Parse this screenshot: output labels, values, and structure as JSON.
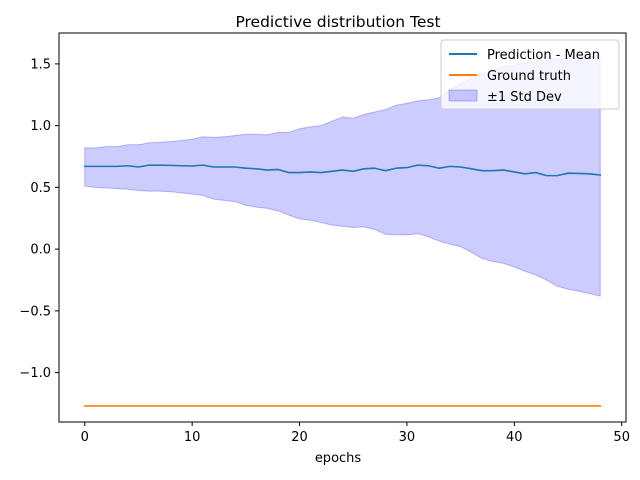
{
  "chart_data": {
    "type": "line",
    "title": "Predictive distribution Test",
    "xlabel": "epochs",
    "ylabel": "",
    "xlim": [
      -2.4,
      50.4
    ],
    "ylim": [
      -1.4,
      1.75
    ],
    "xticks": [
      0,
      10,
      20,
      30,
      40,
      50
    ],
    "yticks": [
      -1.0,
      -0.5,
      0.0,
      0.5,
      1.0,
      1.5
    ],
    "xtick_labels": [
      "0",
      "10",
      "20",
      "30",
      "40",
      "50"
    ],
    "ytick_labels": [
      "−1.0",
      "−0.5",
      "0.0",
      "0.5",
      "1.0",
      "1.5"
    ],
    "grid": false,
    "legend_position": "top-right",
    "x": [
      0,
      1,
      2,
      3,
      4,
      5,
      6,
      7,
      8,
      9,
      10,
      11,
      12,
      13,
      14,
      15,
      16,
      17,
      18,
      19,
      20,
      21,
      22,
      23,
      24,
      25,
      26,
      27,
      28,
      29,
      30,
      31,
      32,
      33,
      34,
      35,
      36,
      37,
      38,
      39,
      40,
      41,
      42,
      43,
      44,
      45,
      46,
      47,
      48
    ],
    "series": [
      {
        "name": "Prediction - Mean",
        "color": "#1f77b4",
        "values": [
          0.67,
          0.67,
          0.67,
          0.67,
          0.675,
          0.665,
          0.68,
          0.68,
          0.678,
          0.675,
          0.673,
          0.68,
          0.665,
          0.665,
          0.665,
          0.655,
          0.65,
          0.64,
          0.645,
          0.62,
          0.62,
          0.625,
          0.62,
          0.63,
          0.64,
          0.63,
          0.65,
          0.655,
          0.635,
          0.655,
          0.66,
          0.68,
          0.675,
          0.655,
          0.67,
          0.665,
          0.65,
          0.635,
          0.635,
          0.64,
          0.625,
          0.61,
          0.62,
          0.595,
          0.595,
          0.615,
          0.613,
          0.61,
          0.6
        ]
      },
      {
        "name": "Ground truth",
        "color": "#ff7f0e",
        "values": [
          -1.27,
          -1.27,
          -1.27,
          -1.27,
          -1.27,
          -1.27,
          -1.27,
          -1.27,
          -1.27,
          -1.27,
          -1.27,
          -1.27,
          -1.27,
          -1.27,
          -1.27,
          -1.27,
          -1.27,
          -1.27,
          -1.27,
          -1.27,
          -1.27,
          -1.27,
          -1.27,
          -1.27,
          -1.27,
          -1.27,
          -1.27,
          -1.27,
          -1.27,
          -1.27,
          -1.27,
          -1.27,
          -1.27,
          -1.27,
          -1.27,
          -1.27,
          -1.27,
          -1.27,
          -1.27,
          -1.27,
          -1.27,
          -1.27,
          -1.27,
          -1.27,
          -1.27,
          -1.27,
          -1.27,
          -1.27,
          -1.27
        ]
      }
    ],
    "band": {
      "name": "±1 Std Dev",
      "fill": "#0000ff",
      "fill_opacity": 0.2,
      "edge": "#0000ff",
      "upper": [
        0.82,
        0.82,
        0.83,
        0.83,
        0.845,
        0.845,
        0.86,
        0.865,
        0.87,
        0.88,
        0.89,
        0.91,
        0.905,
        0.91,
        0.92,
        0.93,
        0.93,
        0.925,
        0.945,
        0.945,
        0.975,
        0.99,
        1.0,
        1.035,
        1.07,
        1.06,
        1.09,
        1.11,
        1.13,
        1.165,
        1.18,
        1.2,
        1.21,
        1.225,
        1.29,
        1.34,
        1.38,
        1.42,
        1.45,
        1.48,
        1.49,
        1.51,
        1.52,
        1.53,
        1.54,
        1.55,
        1.555,
        1.56,
        1.57
      ],
      "lower": [
        0.51,
        0.5,
        0.495,
        0.49,
        0.485,
        0.475,
        0.47,
        0.47,
        0.465,
        0.455,
        0.445,
        0.435,
        0.405,
        0.395,
        0.385,
        0.355,
        0.34,
        0.33,
        0.31,
        0.275,
        0.245,
        0.235,
        0.215,
        0.195,
        0.185,
        0.175,
        0.18,
        0.16,
        0.12,
        0.115,
        0.115,
        0.125,
        0.1,
        0.065,
        0.04,
        0.02,
        -0.025,
        -0.075,
        -0.1,
        -0.115,
        -0.145,
        -0.18,
        -0.21,
        -0.25,
        -0.3,
        -0.325,
        -0.34,
        -0.36,
        -0.38
      ]
    }
  }
}
